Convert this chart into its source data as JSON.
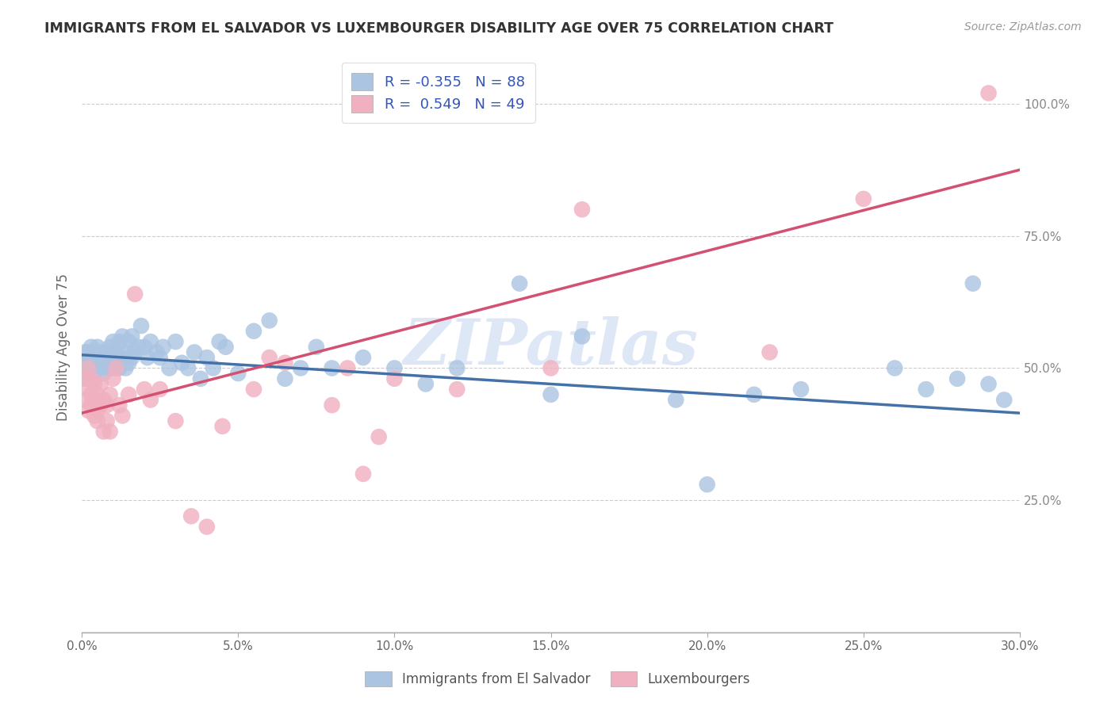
{
  "title": "IMMIGRANTS FROM EL SALVADOR VS LUXEMBOURGER DISABILITY AGE OVER 75 CORRELATION CHART",
  "source": "Source: ZipAtlas.com",
  "ylabel": "Disability Age Over 75",
  "xlim": [
    0.0,
    0.3
  ],
  "ylim": [
    0.0,
    1.08
  ],
  "xtick_labels": [
    "0.0%",
    "5.0%",
    "10.0%",
    "15.0%",
    "20.0%",
    "25.0%",
    "30.0%"
  ],
  "xtick_vals": [
    0.0,
    0.05,
    0.1,
    0.15,
    0.2,
    0.25,
    0.3
  ],
  "ytick_labels_right": [
    "25.0%",
    "50.0%",
    "75.0%",
    "100.0%"
  ],
  "ytick_vals_right": [
    0.25,
    0.5,
    0.75,
    1.0
  ],
  "blue_R": "-0.355",
  "blue_N": "88",
  "pink_R": "0.549",
  "pink_N": "49",
  "blue_color": "#aac4e2",
  "blue_line_color": "#4472a8",
  "pink_color": "#f0b0c0",
  "pink_line_color": "#d45070",
  "watermark": "ZIPatlas",
  "blue_line_x0": 0.0,
  "blue_line_y0": 0.525,
  "blue_line_x1": 0.3,
  "blue_line_y1": 0.415,
  "pink_line_x0": 0.0,
  "pink_line_y0": 0.415,
  "pink_line_x1": 0.3,
  "pink_line_y1": 0.875,
  "blue_scatter_x": [
    0.001,
    0.001,
    0.001,
    0.002,
    0.002,
    0.002,
    0.002,
    0.003,
    0.003,
    0.003,
    0.003,
    0.004,
    0.004,
    0.004,
    0.004,
    0.005,
    0.005,
    0.005,
    0.005,
    0.006,
    0.006,
    0.006,
    0.007,
    0.007,
    0.007,
    0.008,
    0.008,
    0.008,
    0.009,
    0.009,
    0.01,
    0.01,
    0.01,
    0.011,
    0.011,
    0.012,
    0.012,
    0.013,
    0.013,
    0.014,
    0.014,
    0.015,
    0.015,
    0.016,
    0.016,
    0.017,
    0.018,
    0.019,
    0.02,
    0.021,
    0.022,
    0.024,
    0.025,
    0.026,
    0.028,
    0.03,
    0.032,
    0.034,
    0.036,
    0.038,
    0.04,
    0.042,
    0.044,
    0.046,
    0.05,
    0.055,
    0.06,
    0.065,
    0.07,
    0.075,
    0.08,
    0.09,
    0.1,
    0.11,
    0.12,
    0.14,
    0.15,
    0.16,
    0.19,
    0.2,
    0.215,
    0.23,
    0.26,
    0.27,
    0.28,
    0.285,
    0.29,
    0.295
  ],
  "blue_scatter_y": [
    0.52,
    0.5,
    0.53,
    0.51,
    0.53,
    0.5,
    0.48,
    0.52,
    0.51,
    0.54,
    0.49,
    0.52,
    0.5,
    0.53,
    0.48,
    0.51,
    0.52,
    0.5,
    0.54,
    0.51,
    0.53,
    0.5,
    0.52,
    0.51,
    0.49,
    0.53,
    0.5,
    0.52,
    0.51,
    0.54,
    0.52,
    0.55,
    0.5,
    0.53,
    0.51,
    0.55,
    0.5,
    0.56,
    0.52,
    0.53,
    0.5,
    0.55,
    0.51,
    0.56,
    0.52,
    0.53,
    0.54,
    0.58,
    0.54,
    0.52,
    0.55,
    0.53,
    0.52,
    0.54,
    0.5,
    0.55,
    0.51,
    0.5,
    0.53,
    0.48,
    0.52,
    0.5,
    0.55,
    0.54,
    0.49,
    0.57,
    0.59,
    0.48,
    0.5,
    0.54,
    0.5,
    0.52,
    0.5,
    0.47,
    0.5,
    0.66,
    0.45,
    0.56,
    0.44,
    0.28,
    0.45,
    0.46,
    0.5,
    0.46,
    0.48,
    0.66,
    0.47,
    0.44
  ],
  "pink_scatter_x": [
    0.001,
    0.001,
    0.002,
    0.002,
    0.002,
    0.003,
    0.003,
    0.003,
    0.004,
    0.004,
    0.004,
    0.005,
    0.005,
    0.005,
    0.006,
    0.006,
    0.007,
    0.007,
    0.008,
    0.008,
    0.009,
    0.009,
    0.01,
    0.011,
    0.012,
    0.013,
    0.015,
    0.017,
    0.02,
    0.022,
    0.025,
    0.03,
    0.035,
    0.04,
    0.045,
    0.055,
    0.06,
    0.065,
    0.08,
    0.085,
    0.09,
    0.095,
    0.1,
    0.12,
    0.15,
    0.16,
    0.22,
    0.25,
    0.29
  ],
  "pink_scatter_y": [
    0.44,
    0.48,
    0.46,
    0.42,
    0.5,
    0.43,
    0.48,
    0.45,
    0.44,
    0.47,
    0.41,
    0.45,
    0.42,
    0.4,
    0.47,
    0.43,
    0.44,
    0.38,
    0.43,
    0.4,
    0.45,
    0.38,
    0.48,
    0.5,
    0.43,
    0.41,
    0.45,
    0.64,
    0.46,
    0.44,
    0.46,
    0.4,
    0.22,
    0.2,
    0.39,
    0.46,
    0.52,
    0.51,
    0.43,
    0.5,
    0.3,
    0.37,
    0.48,
    0.46,
    0.5,
    0.8,
    0.53,
    0.82,
    1.02
  ]
}
